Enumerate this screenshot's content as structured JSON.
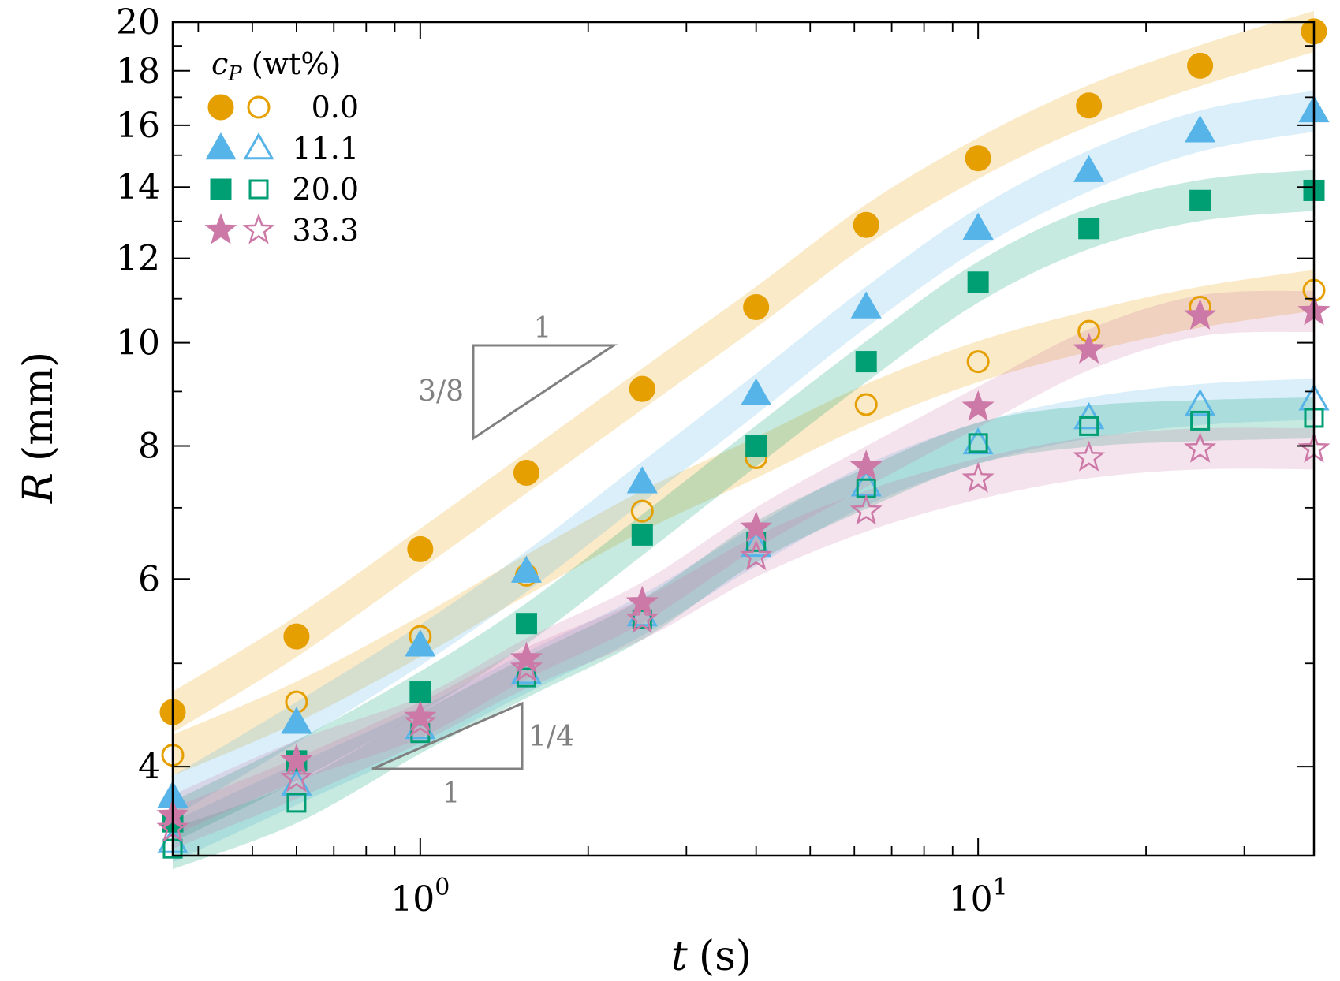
{
  "chart_data": {
    "type": "scatter",
    "title": "",
    "xlabel": "t (s)",
    "xlabel_var": "t",
    "xlabel_unit": "(s)",
    "ylabel": "R (mm)",
    "ylabel_var": "R",
    "ylabel_unit": "(mm)",
    "xscale": "log",
    "yscale": "log",
    "xlim": [
      0.36,
      40
    ],
    "ylim": [
      3.3,
      20
    ],
    "grid": false,
    "x_ticks": [
      {
        "value": 1,
        "base": "10",
        "exp": "0"
      },
      {
        "value": 10,
        "base": "10",
        "exp": "1"
      }
    ],
    "y_ticks": [
      {
        "value": 4,
        "label": "4"
      },
      {
        "value": 6,
        "label": "6"
      },
      {
        "value": 8,
        "label": "8"
      },
      {
        "value": 10,
        "label": "10"
      },
      {
        "value": 12,
        "label": "12"
      },
      {
        "value": 14,
        "label": "14"
      },
      {
        "value": 16,
        "label": "16"
      },
      {
        "value": 18,
        "label": "18"
      },
      {
        "value": 20,
        "label": "20"
      }
    ],
    "x": [
      0.36,
      0.6,
      1.0,
      1.55,
      2.5,
      4.0,
      6.3,
      10.0,
      15.8,
      25.0,
      40.0
    ],
    "legend": {
      "title_var": "c",
      "title_sub": "P",
      "title_unit": "(wt%)",
      "position": "top-left"
    },
    "series": [
      {
        "name": "0.0",
        "marker": "circle",
        "color": "#E69F00",
        "filled": [
          4.5,
          5.3,
          6.4,
          7.55,
          9.05,
          10.8,
          12.9,
          14.9,
          16.7,
          18.2,
          19.6
        ],
        "open": [
          4.1,
          4.6,
          5.3,
          6.05,
          6.95,
          7.8,
          8.75,
          9.6,
          10.25,
          10.8,
          11.2
        ]
      },
      {
        "name": "11.1",
        "marker": "triangle",
        "color": "#56B4E9",
        "filled": [
          3.75,
          4.4,
          5.2,
          6.1,
          7.4,
          8.95,
          10.8,
          12.8,
          14.5,
          15.8,
          16.5
        ],
        "open": [
          3.4,
          3.85,
          4.35,
          4.9,
          5.55,
          6.45,
          7.35,
          8.05,
          8.5,
          8.75,
          8.85
        ]
      },
      {
        "name": "20.0",
        "marker": "square",
        "color": "#009E73",
        "filled": [
          3.55,
          4.05,
          4.7,
          5.45,
          6.6,
          8.0,
          9.6,
          11.4,
          12.8,
          13.6,
          13.9
        ],
        "open": [
          3.35,
          3.7,
          4.3,
          4.85,
          5.5,
          6.5,
          7.3,
          8.05,
          8.35,
          8.45,
          8.5
        ]
      },
      {
        "name": "33.3",
        "marker": "star",
        "color": "#CC79A7",
        "filled": [
          3.6,
          4.05,
          4.45,
          5.05,
          5.7,
          6.7,
          7.65,
          8.7,
          9.85,
          10.6,
          10.7
        ],
        "open": [
          3.5,
          3.9,
          4.4,
          4.95,
          5.5,
          6.3,
          6.95,
          7.45,
          7.8,
          7.95,
          7.95
        ]
      }
    ],
    "annotations": [
      {
        "type": "slope-triangle",
        "slope_label": "3/8",
        "run_label": "1",
        "position": "middle-left"
      },
      {
        "type": "slope-triangle",
        "slope_label": "1/4",
        "run_label": "1",
        "position": "bottom-left"
      }
    ]
  }
}
